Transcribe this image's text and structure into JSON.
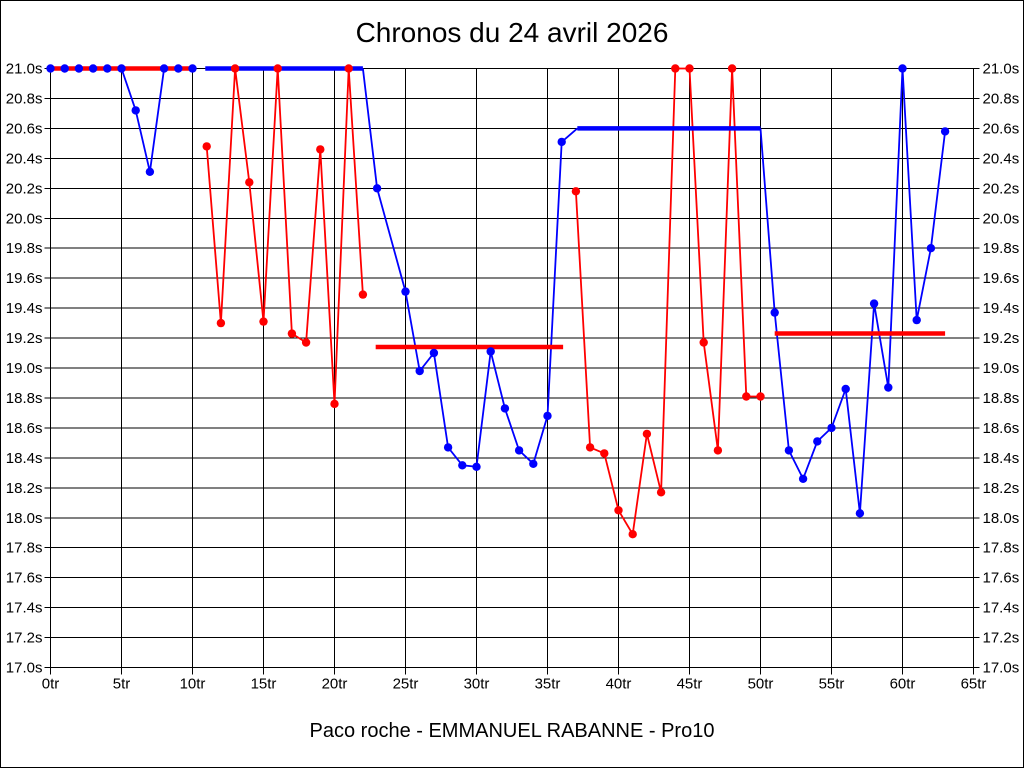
{
  "chart_data": {
    "type": "line",
    "title": "Chronos du 24 avril 2026",
    "footer": "Paco roche - EMMANUEL RABANNE - Pro10",
    "x_unit": "tr",
    "y_unit": "s",
    "xlim": [
      0,
      65
    ],
    "ylim": [
      17.0,
      21.0
    ],
    "grid": true,
    "x_ticks": [
      0,
      5,
      10,
      15,
      20,
      25,
      30,
      35,
      40,
      45,
      50,
      55,
      60,
      65
    ],
    "x_tick_labels": [
      "0tr",
      "5tr",
      "10tr",
      "15tr",
      "20tr",
      "25tr",
      "30tr",
      "35tr",
      "40tr",
      "45tr",
      "50tr",
      "55tr",
      "60tr",
      "65tr"
    ],
    "y_ticks": [
      21.0,
      20.8,
      20.6,
      20.4,
      20.2,
      20.0,
      19.8,
      19.6,
      19.4,
      19.2,
      19.0,
      18.8,
      18.6,
      18.4,
      18.2,
      18.0,
      17.8,
      17.6,
      17.4,
      17.2,
      17.0
    ],
    "y_tick_labels": [
      "21.0s",
      "20.8s",
      "20.6s",
      "20.4s",
      "20.2s",
      "20.0s",
      "19.8s",
      "19.6s",
      "19.4s",
      "19.2s",
      "19.0s",
      "18.8s",
      "18.6s",
      "18.4s",
      "18.2s",
      "18.0s",
      "17.8s",
      "17.6s",
      "17.4s",
      "17.2s",
      "17.0s"
    ],
    "colors": {
      "blue_series": "#0000ff",
      "red_series": "#ff0000",
      "grid": "#000000"
    },
    "series": [
      {
        "name": "blue",
        "color": "#0000ff",
        "paths": [
          [
            [
              0,
              21.0
            ],
            [
              1,
              21.0
            ],
            [
              2,
              21.0
            ],
            [
              3,
              21.0
            ],
            [
              4,
              21.0
            ],
            [
              5,
              21.0
            ],
            [
              6,
              20.72
            ],
            [
              7,
              20.31
            ],
            [
              8,
              21.0
            ],
            [
              9,
              21.0
            ],
            [
              10,
              21.0
            ]
          ],
          [
            [
              22,
              21.0
            ],
            [
              23,
              20.2
            ],
            [
              25,
              19.51
            ],
            [
              26,
              18.98
            ],
            [
              27,
              19.1
            ],
            [
              28,
              18.47
            ],
            [
              29,
              18.35
            ],
            [
              30,
              18.34
            ],
            [
              31,
              19.11
            ],
            [
              32,
              18.73
            ],
            [
              33,
              18.45
            ],
            [
              34,
              18.36
            ],
            [
              35,
              18.68
            ],
            [
              36,
              20.51
            ],
            [
              37.1,
              20.6
            ]
          ],
          [
            [
              50,
              20.6
            ],
            [
              51,
              19.37
            ],
            [
              52,
              18.45
            ],
            [
              53,
              18.26
            ],
            [
              54,
              18.51
            ],
            [
              55,
              18.6
            ],
            [
              56,
              18.86
            ],
            [
              57,
              18.03
            ],
            [
              58,
              19.43
            ],
            [
              59,
              18.87
            ],
            [
              60,
              21.0
            ],
            [
              61,
              19.32
            ],
            [
              62,
              19.8
            ],
            [
              63,
              20.58
            ]
          ]
        ],
        "markers": [
          [
            0,
            21.0
          ],
          [
            1,
            21.0
          ],
          [
            2,
            21.0
          ],
          [
            3,
            21.0
          ],
          [
            4,
            21.0
          ],
          [
            5,
            21.0
          ],
          [
            6,
            20.72
          ],
          [
            7,
            20.31
          ],
          [
            8,
            21.0
          ],
          [
            9,
            21.0
          ],
          [
            10,
            21.0
          ],
          [
            23,
            20.2
          ],
          [
            25,
            19.51
          ],
          [
            26,
            18.98
          ],
          [
            27,
            19.1
          ],
          [
            28,
            18.47
          ],
          [
            29,
            18.35
          ],
          [
            30,
            18.34
          ],
          [
            31,
            19.11
          ],
          [
            32,
            18.73
          ],
          [
            33,
            18.45
          ],
          [
            34,
            18.36
          ],
          [
            35,
            18.68
          ],
          [
            36,
            20.51
          ],
          [
            51,
            19.37
          ],
          [
            52,
            18.45
          ],
          [
            53,
            18.26
          ],
          [
            54,
            18.51
          ],
          [
            55,
            18.6
          ],
          [
            56,
            18.86
          ],
          [
            57,
            18.03
          ],
          [
            58,
            19.43
          ],
          [
            59,
            18.87
          ],
          [
            60,
            21.0
          ],
          [
            61,
            19.32
          ],
          [
            62,
            19.8
          ],
          [
            63,
            20.58
          ]
        ]
      },
      {
        "name": "red",
        "color": "#ff0000",
        "paths": [
          [
            [
              11,
              20.48
            ],
            [
              12,
              19.3
            ],
            [
              13,
              21.0
            ],
            [
              14,
              20.24
            ],
            [
              15,
              19.31
            ],
            [
              16,
              21.0
            ],
            [
              17,
              19.23
            ],
            [
              18,
              19.17
            ],
            [
              19,
              20.46
            ],
            [
              20,
              18.76
            ],
            [
              21,
              21.0
            ],
            [
              22,
              19.49
            ]
          ],
          [
            [
              37,
              20.18
            ],
            [
              38,
              18.47
            ],
            [
              39,
              18.43
            ],
            [
              40,
              18.05
            ],
            [
              41,
              17.89
            ],
            [
              42,
              18.56
            ],
            [
              43,
              18.17
            ],
            [
              44,
              21.0
            ],
            [
              45,
              21.0
            ],
            [
              46,
              19.17
            ],
            [
              47,
              18.45
            ],
            [
              48,
              21.0
            ],
            [
              49,
              18.81
            ],
            [
              50,
              18.81
            ]
          ]
        ],
        "markers": [
          [
            11,
            20.48
          ],
          [
            12,
            19.3
          ],
          [
            13,
            21.0
          ],
          [
            14,
            20.24
          ],
          [
            15,
            19.31
          ],
          [
            16,
            21.0
          ],
          [
            17,
            19.23
          ],
          [
            18,
            19.17
          ],
          [
            19,
            20.46
          ],
          [
            20,
            18.76
          ],
          [
            21,
            21.0
          ],
          [
            22,
            19.49
          ],
          [
            37,
            20.18
          ],
          [
            38,
            18.47
          ],
          [
            39,
            18.43
          ],
          [
            40,
            18.05
          ],
          [
            41,
            17.89
          ],
          [
            42,
            18.56
          ],
          [
            43,
            18.17
          ],
          [
            44,
            21.0
          ],
          [
            45,
            21.0
          ],
          [
            46,
            19.17
          ],
          [
            47,
            18.45
          ],
          [
            48,
            21.0
          ],
          [
            49,
            18.81
          ],
          [
            50,
            18.81
          ]
        ]
      }
    ],
    "pace_segments": [
      {
        "color": "#ff0000",
        "x1": 0,
        "x2": 10.0,
        "y": 21.0
      },
      {
        "color": "#0000ff",
        "x1": 10.9,
        "x2": 22.0,
        "y": 21.0
      },
      {
        "color": "#ff0000",
        "x1": 22.9,
        "x2": 36.1,
        "y": 19.14
      },
      {
        "color": "#0000ff",
        "x1": 37.1,
        "x2": 50.0,
        "y": 20.6
      },
      {
        "color": "#ff0000",
        "x1": 51.0,
        "x2": 63.0,
        "y": 19.23
      }
    ]
  }
}
